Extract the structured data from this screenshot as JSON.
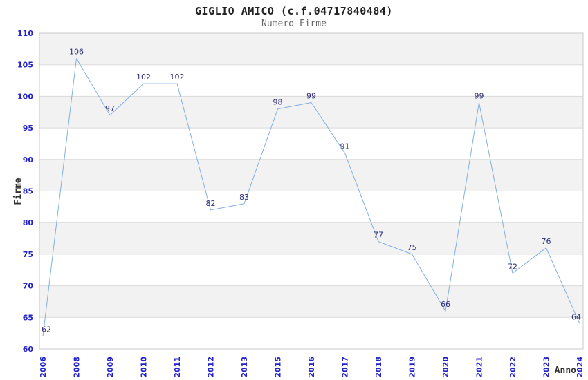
{
  "chart_data": {
    "type": "line",
    "title": "GIGLIO AMICO (c.f.04717840484)",
    "subtitle": "Numero Firme",
    "xlabel": "Anno",
    "ylabel": "Firme",
    "categories": [
      "2006",
      "2008",
      "2009",
      "2010",
      "2011",
      "2012",
      "2013",
      "2015",
      "2016",
      "2017",
      "2018",
      "2019",
      "2020",
      "2021",
      "2022",
      "2023",
      "2024"
    ],
    "values": [
      62,
      106,
      97,
      102,
      102,
      82,
      83,
      98,
      99,
      91,
      77,
      75,
      66,
      99,
      72,
      76,
      64
    ],
    "ylim": [
      60,
      110
    ],
    "ytick_step": 5,
    "grid": "horizontal",
    "bands": "alternating-gray",
    "legend_position": "none",
    "markers": "none",
    "colors": {
      "line": "#82AFE0",
      "data_label": "#2E2E78",
      "tick_label": "#2323CC",
      "band_fill": "#F2F2F2",
      "grid_line": "#D9D9D9",
      "plot_border": "#C9C9C9",
      "title": "#222222",
      "subtitle": "#666666",
      "axis_label": "#333333",
      "background": "#FFFFFF"
    }
  }
}
